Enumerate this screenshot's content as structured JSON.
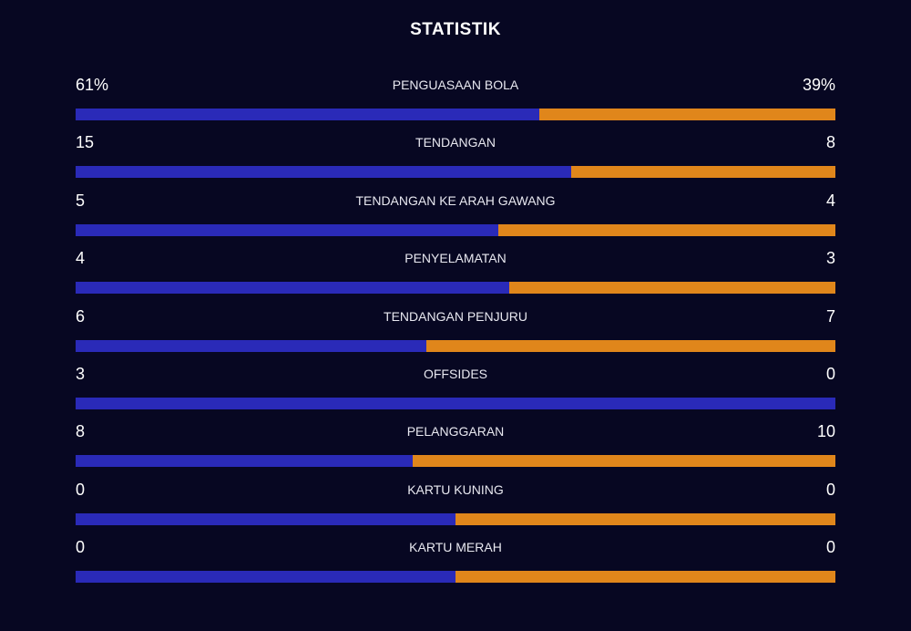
{
  "title": "STATISTIK",
  "colors": {
    "background": "#070722",
    "home": "#2a2ab8",
    "away": "#e0861b"
  },
  "stats": [
    {
      "label": "PENGUASAAN BOLA",
      "home": "61%",
      "away": "39%",
      "home_share": 0.61
    },
    {
      "label": "TENDANGAN",
      "home": "15",
      "away": "8",
      "home_share": 0.652
    },
    {
      "label": "TENDANGAN KE ARAH GAWANG",
      "home": "5",
      "away": "4",
      "home_share": 0.556
    },
    {
      "label": "PENYELAMATAN",
      "home": "4",
      "away": "3",
      "home_share": 0.571
    },
    {
      "label": "TENDANGAN PENJURU",
      "home": "6",
      "away": "7",
      "home_share": 0.462
    },
    {
      "label": "OFFSIDES",
      "home": "3",
      "away": "0",
      "home_share": 1.0
    },
    {
      "label": "PELANGGARAN",
      "home": "8",
      "away": "10",
      "home_share": 0.444
    },
    {
      "label": "KARTU KUNING",
      "home": "0",
      "away": "0",
      "home_share": 0.5
    },
    {
      "label": "KARTU MERAH",
      "home": "0",
      "away": "0",
      "home_share": 0.5
    }
  ]
}
